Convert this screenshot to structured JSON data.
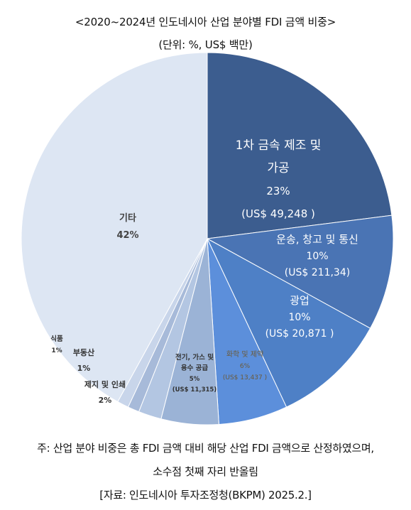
{
  "title": "<2020~2024년 인도네시아 산업 분야별 FDI 금액 비중>",
  "subtitle": "(단위: %, US$ 백만)",
  "chart_data": {
    "type": "pie",
    "slices": [
      {
        "label_lines": [
          "1차 금속 제조 및",
          "가공"
        ],
        "pct_text": "23%",
        "amount_text": "(US$  49,248 )",
        "value": 23,
        "color": "#3c5d8f"
      },
      {
        "label_lines": [
          "운송, 창고 및 통신"
        ],
        "pct_text": "10%",
        "amount_text": "(US$ 211,34)",
        "value": 10,
        "color": "#4a74b4"
      },
      {
        "label_lines": [
          "광업"
        ],
        "pct_text": "10%",
        "amount_text": "(US$  20,871 )",
        "value": 10,
        "color": "#4e80c6"
      },
      {
        "label_lines": [
          "화학 및 제약"
        ],
        "pct_text": "6%",
        "amount_text": "(US$  13,437 )",
        "value": 6,
        "color": "#5c8fdb"
      },
      {
        "label_lines": [
          "전기, 가스 및",
          "용수 공급"
        ],
        "pct_text": "5%",
        "amount_text": "(US$ 11,315)",
        "value": 5,
        "color": "#9bb3d6"
      },
      {
        "label_lines": [
          "제지 및 인쇄"
        ],
        "pct_text": "2%",
        "amount_text": "",
        "value": 2,
        "color": "#b3c6e2"
      },
      {
        "label_lines": [
          "부동산"
        ],
        "pct_text": "1%",
        "amount_text": "",
        "value": 1,
        "color": "#a7bad9"
      },
      {
        "label_lines": [
          "식품"
        ],
        "pct_text": "1%",
        "amount_text": "",
        "value": 1,
        "color": "#c8d5ea"
      },
      {
        "label_lines": [
          "기타"
        ],
        "pct_text": "42%",
        "amount_text": "",
        "value": 42,
        "color": "#dde6f3"
      }
    ]
  },
  "notes": {
    "line1": "주: 산업 분야 비중은 총 FDI 금액 대비 해당 산업 FDI 금액으로 산정하였으며,",
    "line2": "소수점 첫째 자리 반올림",
    "line3": "[자료: 인도네시아 투자조정청(BKPM) 2025.2.]"
  }
}
